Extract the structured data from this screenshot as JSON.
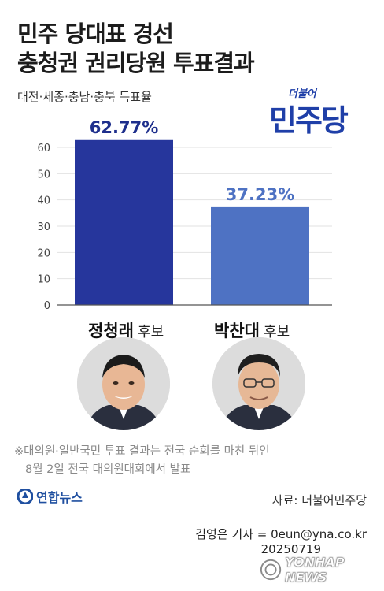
{
  "title_line1": "민주 당대표 경선",
  "title_line2": "충청권 권리당원 투표결과",
  "subtitle": "대전·세종·충남·충북 득표율",
  "party_logo": {
    "small": "더불어",
    "big": "민주당",
    "color": "#1f3fa8"
  },
  "chart_data": {
    "type": "bar",
    "categories": [
      "정청래 후보",
      "박찬대 후보"
    ],
    "values": [
      62.77,
      37.23
    ],
    "value_labels": [
      "62.77%",
      "37.23%"
    ],
    "ylim": [
      0,
      60
    ],
    "yticks": [
      0,
      10,
      20,
      30,
      40,
      50,
      60
    ],
    "grid": true,
    "colors": [
      "#26369c",
      "#4e72c3"
    ],
    "label_colors": [
      "#1e2f8c",
      "#4e72c3"
    ]
  },
  "candidates": [
    {
      "name": "정청래",
      "suffix": "후보"
    },
    {
      "name": "박찬대",
      "suffix": "후보"
    }
  ],
  "note_line1": "※대의원·일반국민 투표 결과는 전국 순회를 마친 뒤인",
  "note_line2": "8월 2일 전국 대의원대회에서 발표",
  "agency_name": "연합뉴스",
  "source": "자료: 더불어민주당",
  "reporter": "김영은 기자 = 0eun@yna.co.kr",
  "date": "20250719",
  "watermark": "YONHAP NEWS"
}
